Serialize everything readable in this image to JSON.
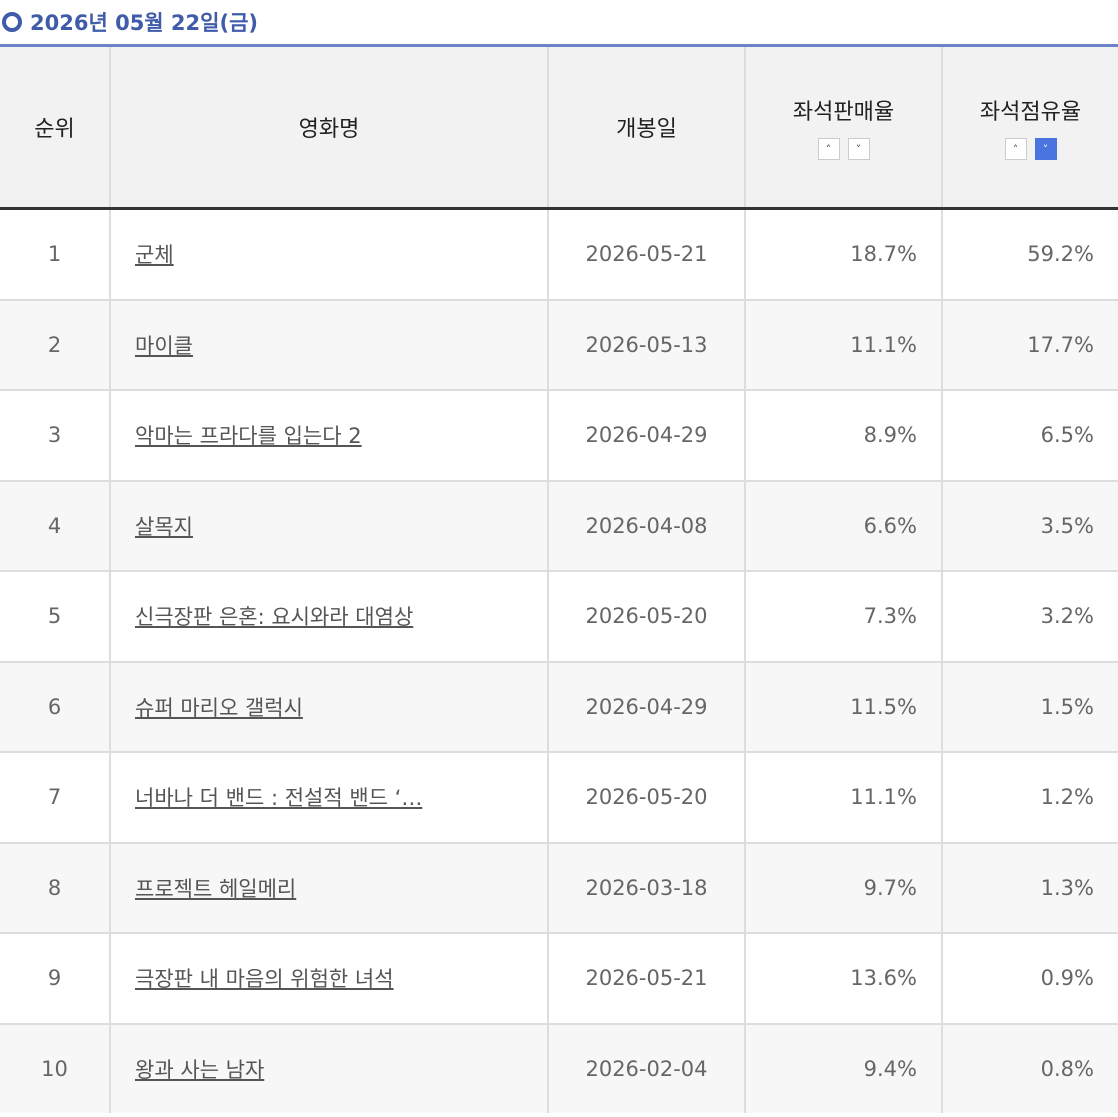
{
  "header": {
    "title": "2026년 05월 22일(금)"
  },
  "table": {
    "columns": [
      "순위",
      "영화명",
      "개봉일",
      "좌석판매율",
      "좌석점유율"
    ],
    "rows": [
      [
        "1",
        "군체",
        "2026-05-21",
        "18.7%",
        "59.2%"
      ],
      [
        "2",
        "마이클",
        "2026-05-13",
        "11.1%",
        "17.7%"
      ],
      [
        "3",
        "악마는 프라다를 입는다 2",
        "2026-04-29",
        "8.9%",
        "6.5%"
      ],
      [
        "4",
        "살목지",
        "2026-04-08",
        "6.6%",
        "3.5%"
      ],
      [
        "5",
        "신극장판 은혼: 요시와라 대염상",
        "2026-05-20",
        "7.3%",
        "3.2%"
      ],
      [
        "6",
        "슈퍼 마리오 갤럭시",
        "2026-04-29",
        "11.5%",
        "1.5%"
      ],
      [
        "7",
        "너바나 더 밴드 : 전설적 밴드 ‘…",
        "2026-05-20",
        "11.1%",
        "1.2%"
      ],
      [
        "8",
        "프로젝트 헤일메리",
        "2026-03-18",
        "9.7%",
        "1.3%"
      ],
      [
        "9",
        "극장판 내 마음의 위험한 녀석",
        "2026-05-21",
        "13.6%",
        "0.9%"
      ],
      [
        "10",
        "왕과 사는 남자",
        "2026-02-04",
        "9.4%",
        "0.8%"
      ]
    ]
  }
}
